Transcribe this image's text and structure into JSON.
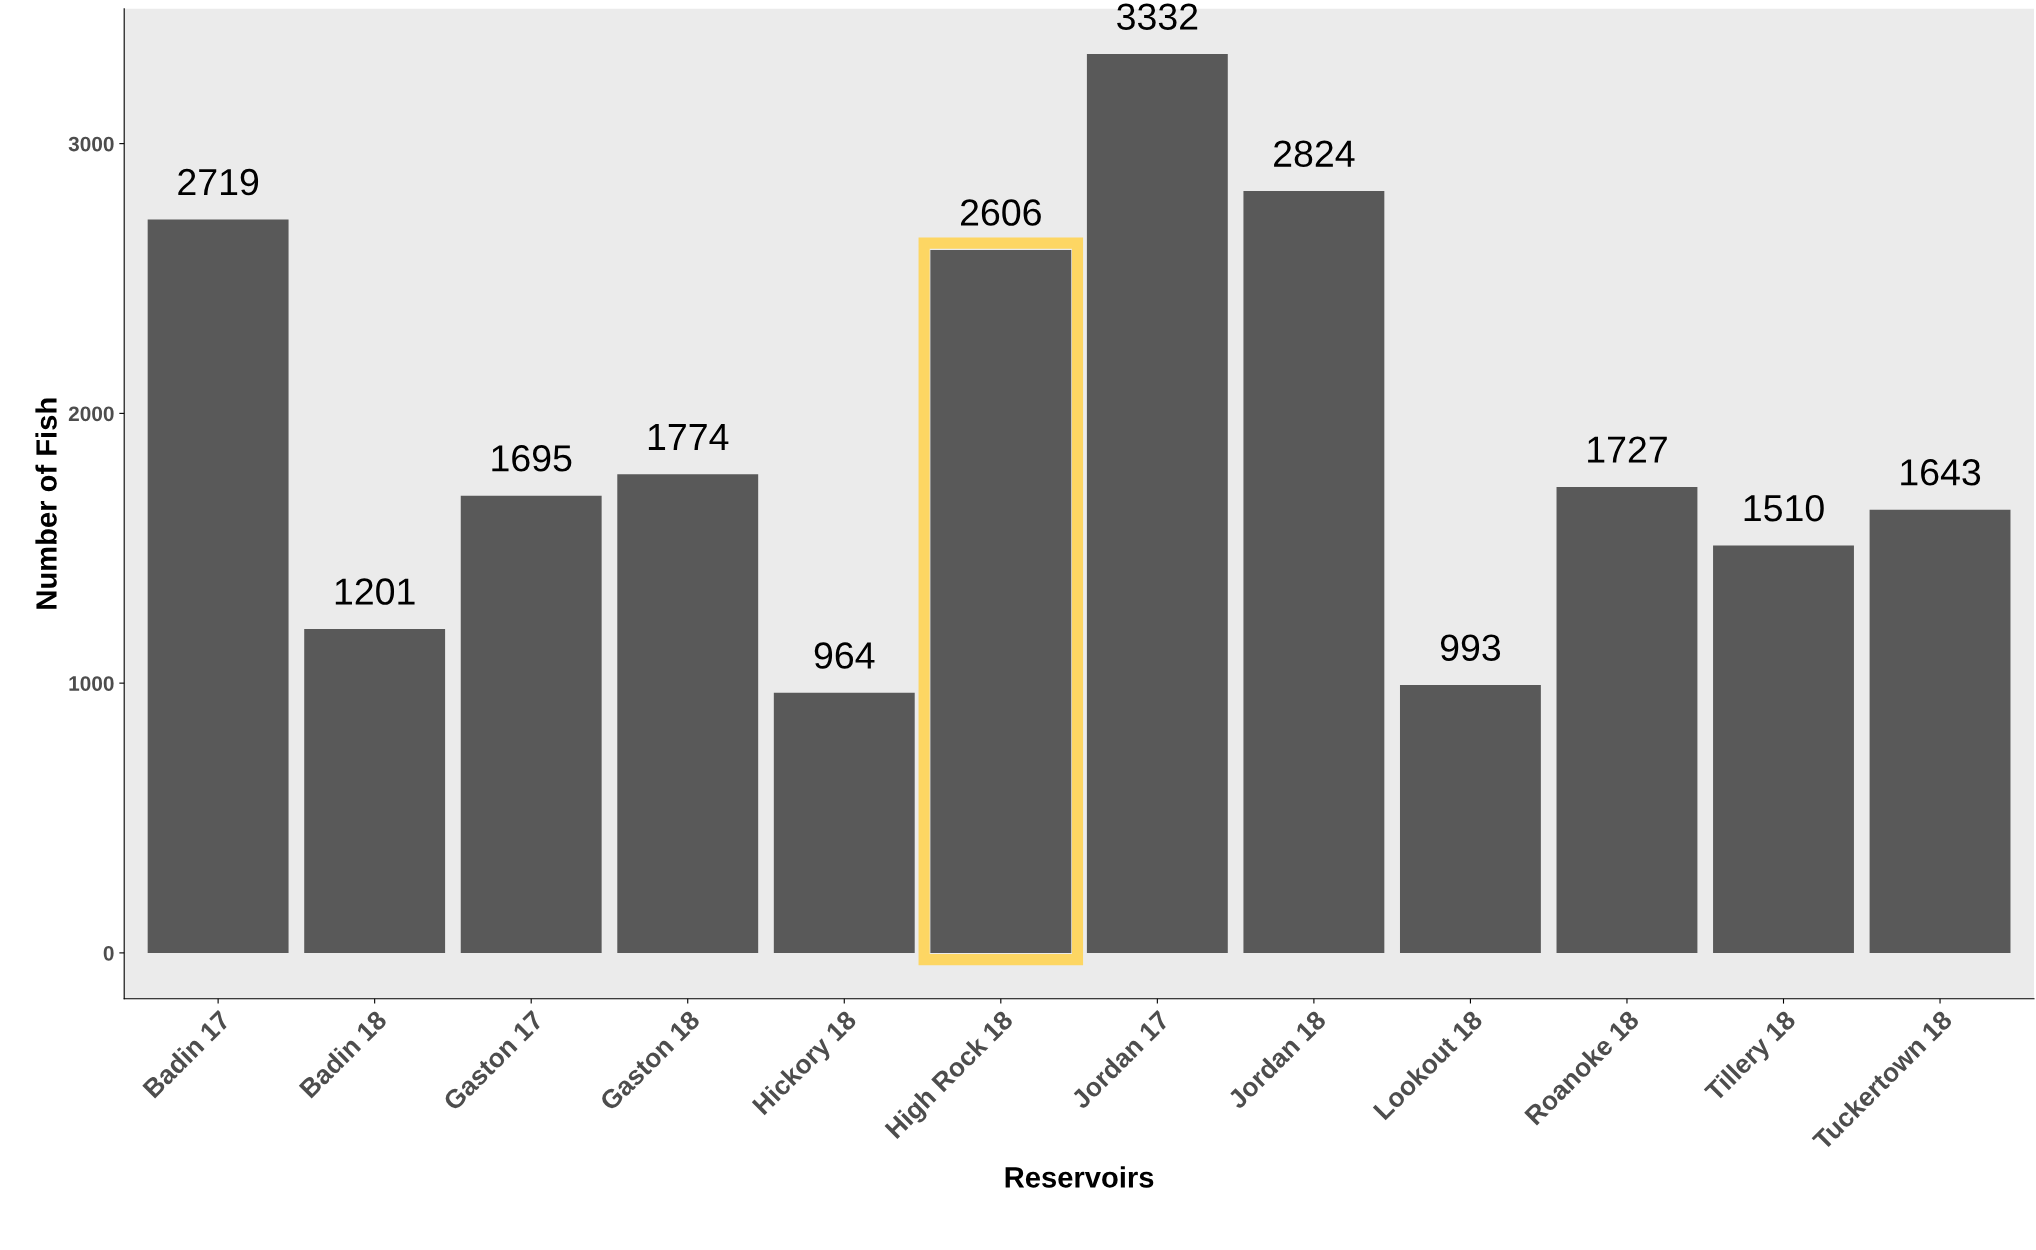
{
  "chart_data": {
    "type": "bar",
    "xlabel": "Reservoirs",
    "ylabel": "Number of Fish",
    "categories": [
      "Badin 17",
      "Badin 18",
      "Gaston 17",
      "Gaston 18",
      "Hickory 18",
      "High Rock 18",
      "Jordan 17",
      "Jordan 18",
      "Lookout 18",
      "Roanoke 18",
      "Tillery 18",
      "Tuckertown 18"
    ],
    "values": [
      2719,
      1201,
      1695,
      1774,
      964,
      2606,
      3332,
      2824,
      993,
      1727,
      1510,
      1643
    ],
    "color": "#595959",
    "ylim": [
      -170,
      3500
    ],
    "yticks": [
      0,
      1000,
      2000,
      3000
    ],
    "data_labels": true
  }
}
